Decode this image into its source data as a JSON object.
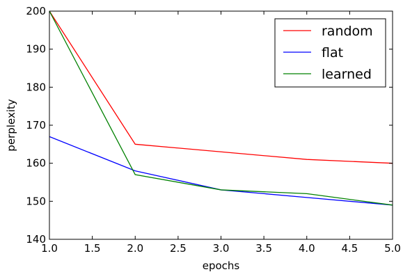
{
  "chart_data": {
    "type": "line",
    "title": "",
    "xlabel": "epochs",
    "ylabel": "perplexity",
    "xlim": [
      1.0,
      5.0
    ],
    "ylim": [
      140,
      200
    ],
    "xticks": [
      1.0,
      1.5,
      2.0,
      2.5,
      3.0,
      3.5,
      4.0,
      4.5,
      5.0
    ],
    "xtick_labels": [
      "1.0",
      "1.5",
      "2.0",
      "2.5",
      "3.0",
      "3.5",
      "4.0",
      "4.5",
      "5.0"
    ],
    "yticks": [
      140,
      150,
      160,
      170,
      180,
      190,
      200
    ],
    "ytick_labels": [
      "140",
      "150",
      "160",
      "170",
      "180",
      "190",
      "200"
    ],
    "grid": false,
    "legend_position": "top-right",
    "x": [
      1,
      2,
      3,
      4,
      5
    ],
    "series": [
      {
        "name": "random",
        "color": "#ff0000",
        "values": [
          200,
          165,
          163,
          161,
          160
        ]
      },
      {
        "name": "flat",
        "color": "#0000ff",
        "values": [
          167,
          158,
          153,
          151,
          149
        ]
      },
      {
        "name": "learned",
        "color": "#008000",
        "values": [
          200,
          157,
          153,
          152,
          149
        ]
      }
    ]
  }
}
